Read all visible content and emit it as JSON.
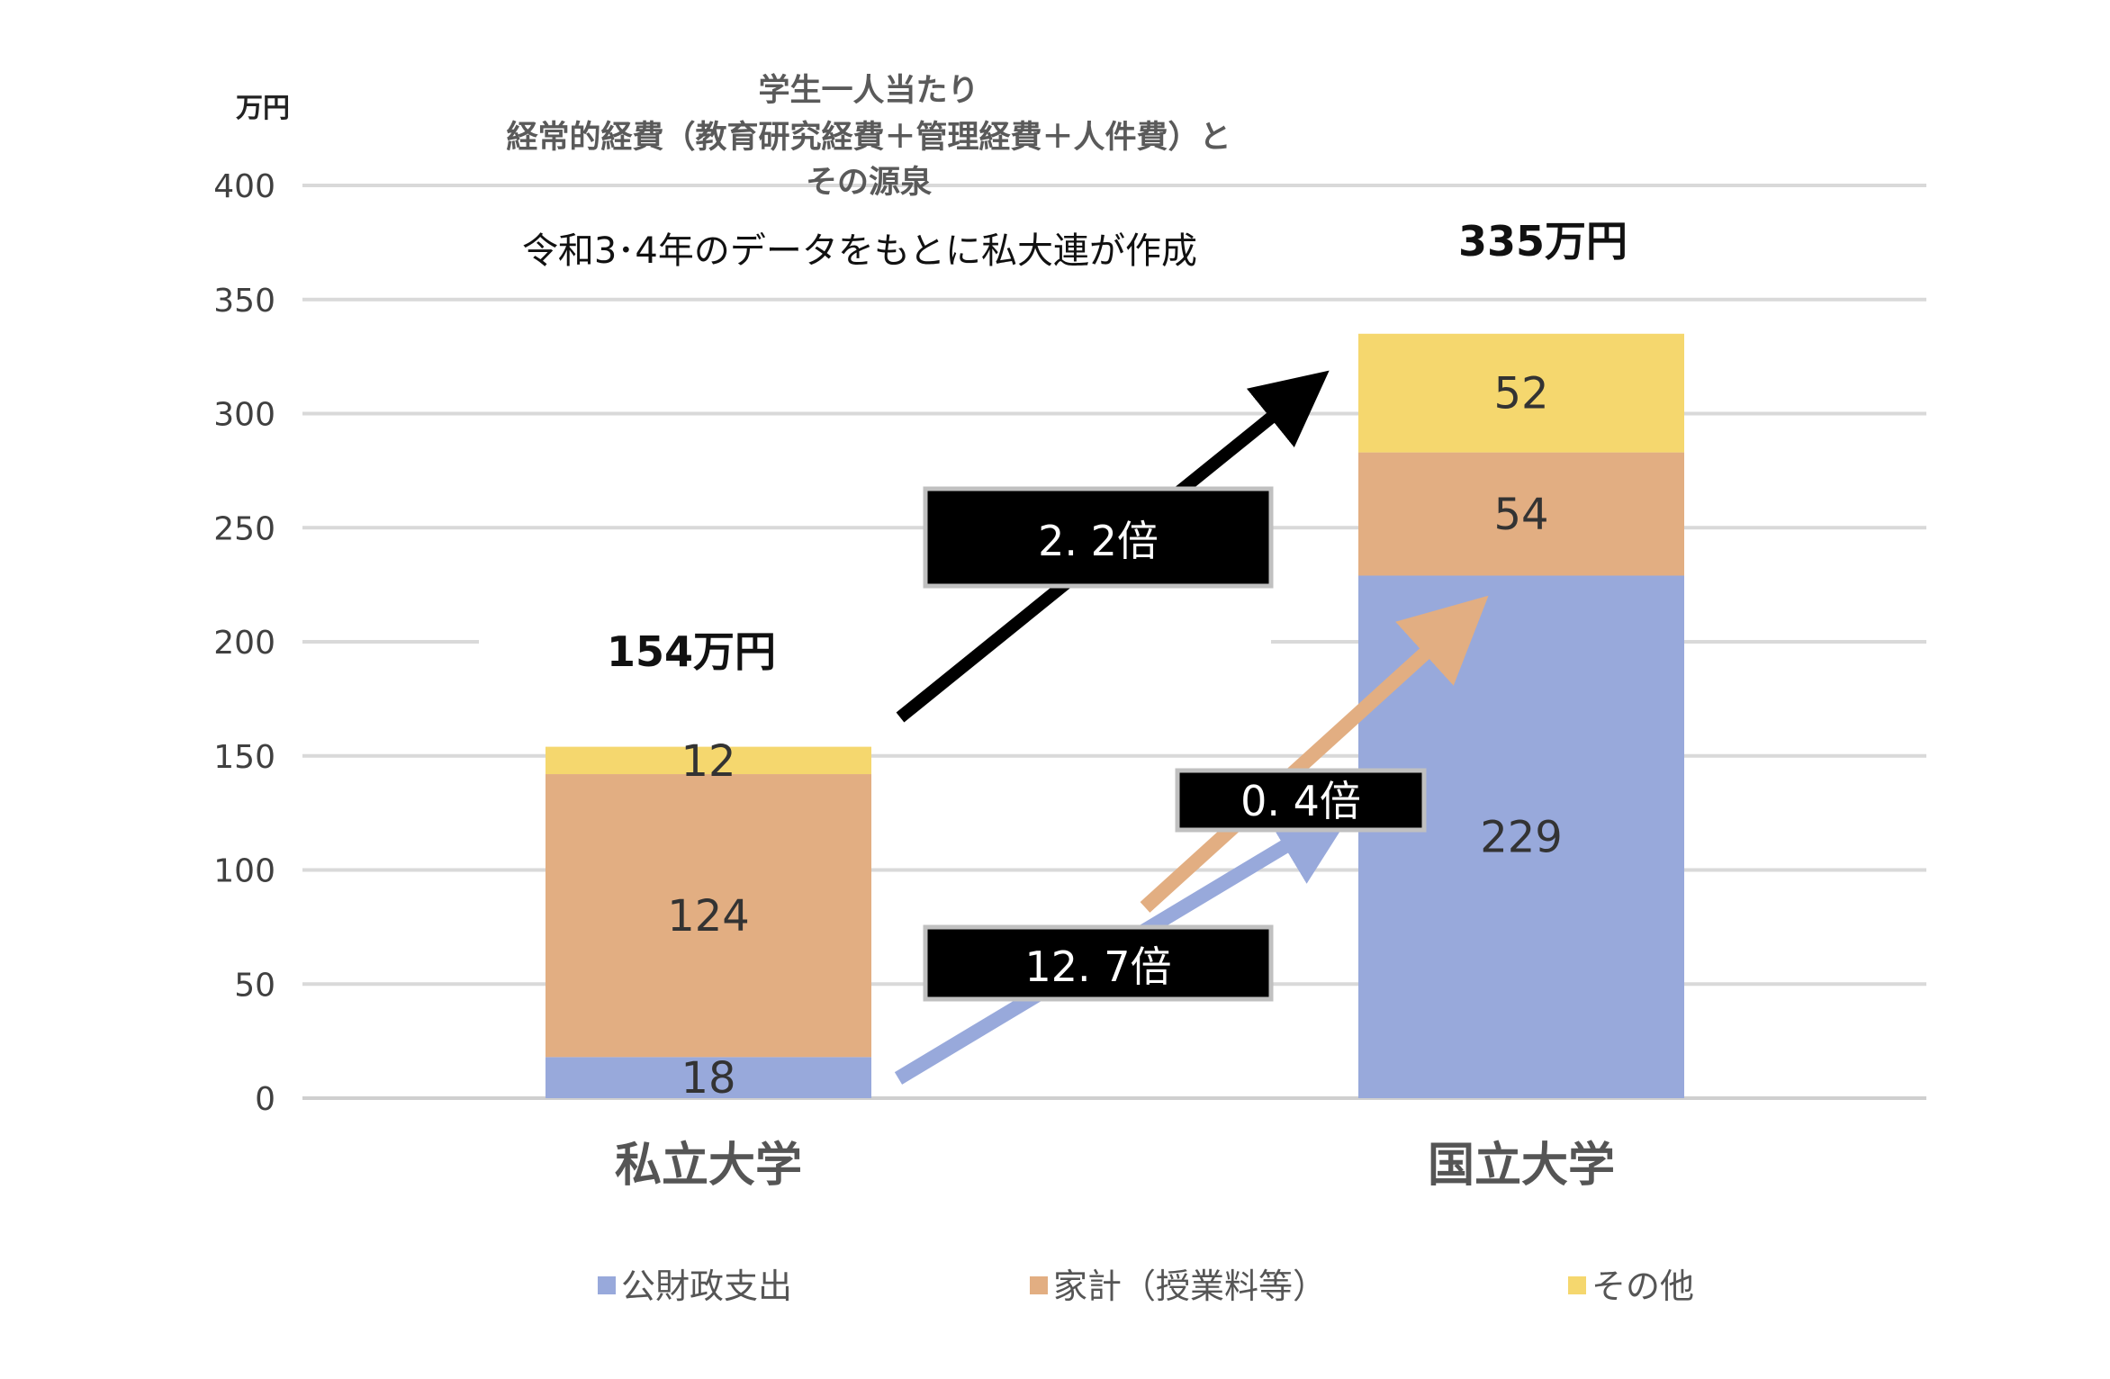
{
  "chart_data": {
    "type": "bar",
    "stacked": true,
    "title_lines": [
      "学生一人当たり",
      "経常的経費（教育研究経費＋管理経費＋人件費）と",
      "その源泉"
    ],
    "subtitle": "令和3･4年のデータをもとに私大連が作成",
    "y_unit": "万円",
    "ylim": [
      0,
      400
    ],
    "yticks": [
      "0",
      "50",
      "100",
      "150",
      "200",
      "250",
      "300",
      "350",
      "400"
    ],
    "grid": true,
    "legend_position": "bottom",
    "categories": [
      "私立大学",
      "国立大学"
    ],
    "series": [
      {
        "name": "公財政支出",
        "values": [
          18,
          229
        ],
        "labels": [
          "18",
          "229"
        ],
        "color": "#98a9db"
      },
      {
        "name": "家計（授業料等）",
        "values": [
          124,
          54
        ],
        "labels": [
          "124",
          "54"
        ],
        "color": "#e2ae82"
      },
      {
        "name": "その他",
        "values": [
          12,
          52
        ],
        "labels": [
          "12",
          "52"
        ],
        "color": "#f5d76e"
      }
    ],
    "totals": [
      "154万円",
      "335万円"
    ],
    "annotations": [
      {
        "text": "2. 2倍",
        "color": "#000000"
      },
      {
        "text": "0. 4倍",
        "color": "#e2ae82"
      },
      {
        "text": "12. 7倍",
        "color": "#98a9db"
      }
    ]
  }
}
